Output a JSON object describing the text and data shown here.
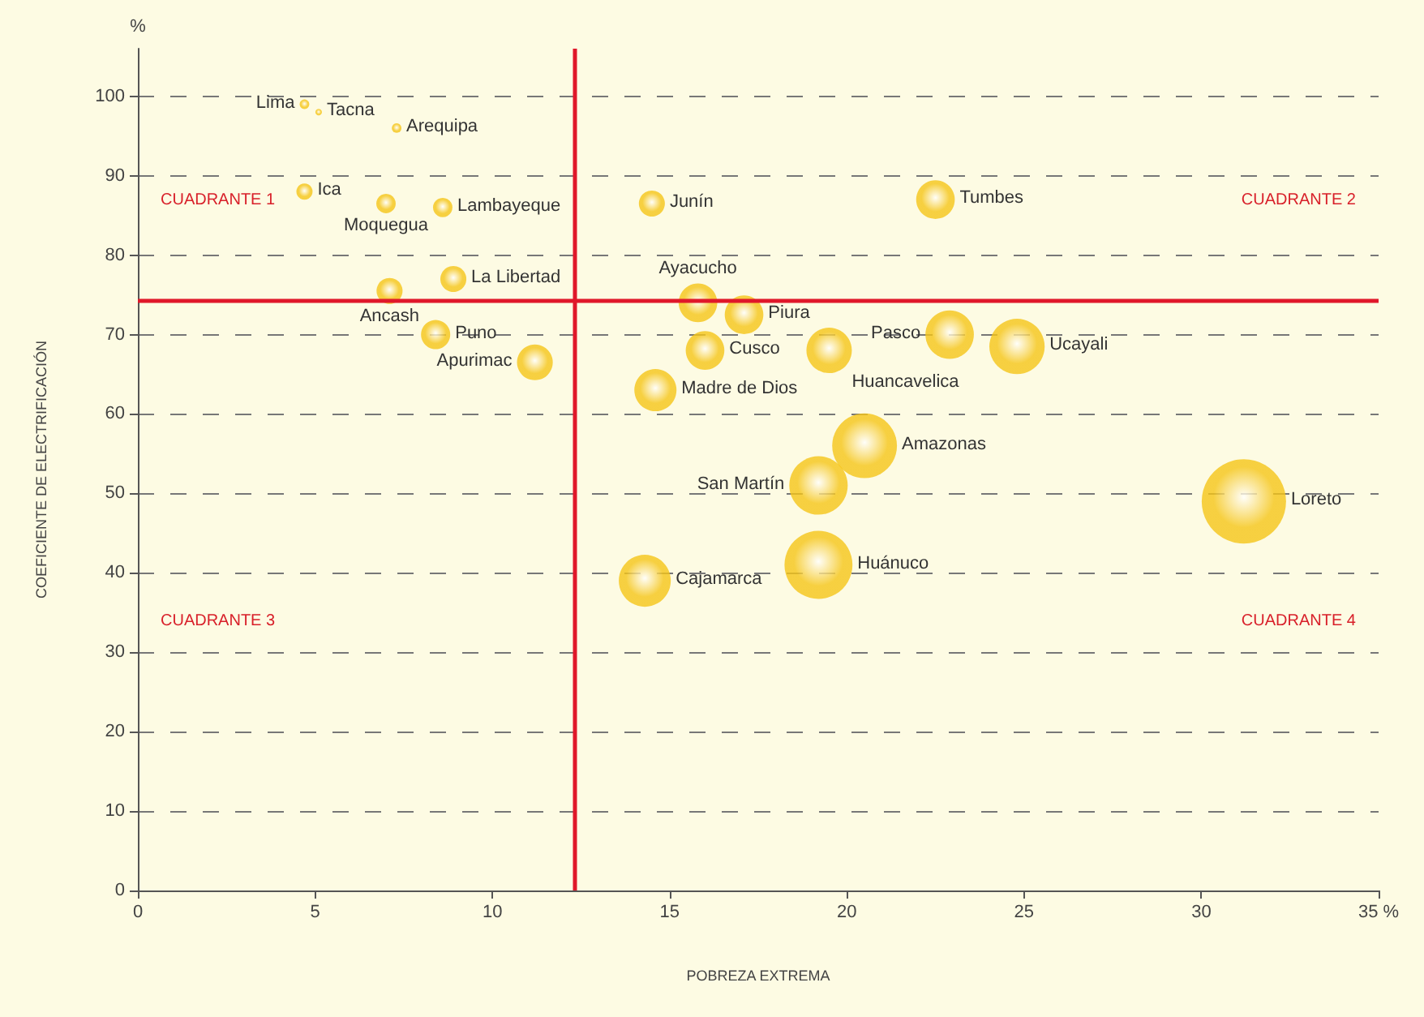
{
  "chart_data": {
    "type": "bubble",
    "xlabel": "POBREZA EXTREMA",
    "ylabel": "COEFICIENTE DE ELECTRIFICACIÓN",
    "series": [
      {
        "color": "#f5c518",
        "x": [
          4.7,
          5.1,
          7.3,
          4.7,
          7.0,
          8.6,
          8.9,
          7.1,
          8.4,
          11.2,
          14.6,
          14.5,
          15.8,
          16.0,
          17.1,
          22.5,
          19.5,
          22.9,
          24.8,
          20.5,
          19.2,
          31.2,
          19.2,
          14.3
        ],
        "values": [
          99,
          98,
          96,
          88,
          86.5,
          86,
          77,
          75.5,
          70,
          66.5,
          63,
          86.5,
          74,
          68,
          72.5,
          87,
          68,
          70,
          68.5,
          56,
          51,
          49,
          41,
          39
        ],
        "sizes": [
          0.013,
          0.006,
          0.013,
          0.037,
          0.053,
          0.053,
          0.095,
          0.095,
          0.12,
          0.18,
          0.25,
          0.095,
          0.21,
          0.21,
          0.21,
          0.21,
          0.29,
          0.33,
          0.43,
          0.59,
          0.48,
          1,
          0.65,
          0.38
        ]
      }
    ],
    "annotations": [
      {
        "text": "Lima",
        "x": 4.7,
        "y": 99
      },
      {
        "text": "Tacna",
        "x": 5.1,
        "y": 98
      },
      {
        "text": "Arequipa",
        "x": 7.3,
        "y": 96
      },
      {
        "text": "Ica",
        "x": 4.7,
        "y": 88
      },
      {
        "text": "Moquegua",
        "x": 7.0,
        "y": 86.5
      },
      {
        "text": "Lambayeque",
        "x": 8.6,
        "y": 86
      },
      {
        "text": "La Libertad",
        "x": 8.9,
        "y": 77
      },
      {
        "text": "Ancash",
        "x": 7.1,
        "y": 75.5
      },
      {
        "text": "Puno",
        "x": 8.4,
        "y": 70
      },
      {
        "text": "Apurimac",
        "x": 11.2,
        "y": 66.5
      },
      {
        "text": "Madre de Dios",
        "x": 14.6,
        "y": 63
      },
      {
        "text": "Junín",
        "x": 14.5,
        "y": 86.5
      },
      {
        "text": "Ayacucho",
        "x": 15.8,
        "y": 74
      },
      {
        "text": "Piura",
        "x": 17.1,
        "y": 72.5
      },
      {
        "text": "Cusco",
        "x": 16.0,
        "y": 68
      },
      {
        "text": "Huancavelica",
        "x": 19.5,
        "y": 68
      },
      {
        "text": "Tumbes",
        "x": 22.5,
        "y": 87
      },
      {
        "text": "Pasco",
        "x": 22.9,
        "y": 70
      },
      {
        "text": "Ucayali",
        "x": 24.8,
        "y": 68.5
      },
      {
        "text": "Amazonas",
        "x": 20.5,
        "y": 56
      },
      {
        "text": "San Martín",
        "x": 19.2,
        "y": 51
      },
      {
        "text": "Loreto",
        "x": 31.2,
        "y": 49
      },
      {
        "text": "Huánuco",
        "x": 19.2,
        "y": 41
      },
      {
        "text": "Cajamarca",
        "x": 14.3,
        "y": 39
      },
      "CUADRANTE 1",
      "CUADRANTE 2",
      "CUADRANTE 3",
      "CUADRANTE 4",
      "%"
    ],
    "ref_lines": [
      {
        "axis": "x",
        "value": 12.3,
        "color": "#e0182a"
      },
      {
        "axis": "y",
        "value": 74.3,
        "color": "#e0182a"
      }
    ],
    "xlim": [
      0,
      35
    ],
    "xticks": [
      0,
      5,
      10,
      15,
      20,
      25,
      30,
      {
        "value": 35,
        "label": "35 %"
      }
    ],
    "ylim": [
      0,
      106
    ],
    "yticks": [
      0,
      10,
      20,
      30,
      40,
      50,
      60,
      70,
      80,
      90,
      100
    ],
    "grid": "y"
  }
}
